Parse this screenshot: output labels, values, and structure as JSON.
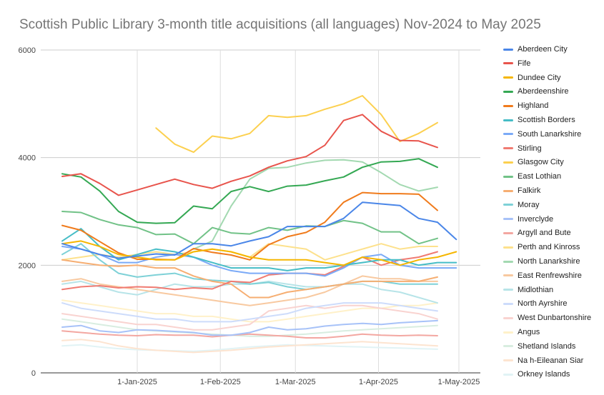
{
  "chart_data": {
    "type": "line",
    "title": "Scottish Public Library 3-month title acquisitions (all languages) Nov-2024 to May 2025",
    "xlabel": "",
    "ylabel": "",
    "ylim": [
      0,
      6000
    ],
    "yticks": [
      0,
      2000,
      4000,
      6000
    ],
    "xticks": [
      "1-Jan-2025",
      "1-Feb-2025",
      "1-Mar-2025",
      "1-Apr-2025",
      "1-May-2025"
    ],
    "grid": true,
    "legend": "right",
    "x": [
      "2024-12-04",
      "2024-12-11",
      "2024-12-18",
      "2024-12-25",
      "2025-01-01",
      "2025-01-08",
      "2025-01-15",
      "2025-01-22",
      "2025-01-29",
      "2025-02-05",
      "2025-02-12",
      "2025-02-19",
      "2025-02-26",
      "2025-03-05",
      "2025-03-12",
      "2025-03-19",
      "2025-03-26",
      "2025-04-02",
      "2025-04-09",
      "2025-04-16",
      "2025-04-23",
      "2025-04-30",
      "2025-05-07"
    ],
    "series": [
      {
        "name": "Aberdeen City",
        "color": "#4a86e8",
        "values": [
          2400,
          2300,
          2200,
          2130,
          2170,
          2210,
          2190,
          2400,
          2400,
          2360,
          2450,
          2530,
          2720,
          2720,
          2720,
          2870,
          3170,
          3140,
          3110,
          2870,
          2800,
          2480,
          null
        ]
      },
      {
        "name": "Fife",
        "color": "#e8544c",
        "values": [
          3650,
          3700,
          3520,
          3300,
          3400,
          3500,
          3600,
          3500,
          3430,
          3560,
          3660,
          3820,
          3940,
          4020,
          4230,
          4690,
          4800,
          4490,
          4320,
          4310,
          4190,
          null,
          null
        ]
      },
      {
        "name": "Dundee City",
        "color": "#f5b600",
        "values": [
          2400,
          2450,
          2350,
          2200,
          2150,
          2100,
          2100,
          2250,
          2300,
          2250,
          2150,
          2100,
          2100,
          2100,
          2050,
          2000,
          2150,
          2100,
          2000,
          2100,
          2150,
          2250,
          null
        ]
      },
      {
        "name": "Aberdeenshire",
        "color": "#34a853",
        "values": [
          3700,
          3640,
          3380,
          3000,
          2800,
          2780,
          2790,
          3100,
          3050,
          3370,
          3460,
          3370,
          3470,
          3490,
          3570,
          3640,
          3820,
          3920,
          3930,
          3980,
          3820,
          null,
          null
        ]
      },
      {
        "name": "Highland",
        "color": "#f07b1c",
        "values": [
          2740,
          2650,
          2440,
          2230,
          2110,
          2110,
          2100,
          2310,
          2240,
          2190,
          2100,
          2380,
          2530,
          2610,
          2800,
          3170,
          3350,
          3330,
          3330,
          3320,
          3020,
          null,
          null
        ]
      },
      {
        "name": "Scottish Borders",
        "color": "#46bdc6",
        "values": [
          2450,
          2680,
          2350,
          2100,
          2200,
          2300,
          2250,
          2150,
          2050,
          1950,
          1950,
          1950,
          1900,
          1950,
          1950,
          2000,
          2050,
          2100,
          2100,
          2000,
          2050,
          2050,
          null
        ]
      },
      {
        "name": "South Lanarkshire",
        "color": "#7baaf7",
        "values": [
          2350,
          2300,
          2200,
          2050,
          2050,
          2150,
          2200,
          2150,
          2000,
          1900,
          1850,
          1850,
          1850,
          1850,
          1800,
          1950,
          2150,
          2200,
          2000,
          1950,
          1950,
          1950,
          null
        ]
      },
      {
        "name": "Stirling",
        "color": "#f07b72",
        "values": [
          1550,
          1600,
          1620,
          1580,
          1600,
          1590,
          1550,
          1580,
          1560,
          1700,
          1680,
          1820,
          1850,
          1850,
          1820,
          1980,
          2150,
          2000,
          2100,
          2150,
          2250,
          null,
          null
        ]
      },
      {
        "name": "Glasgow City",
        "color": "#fcd04f",
        "values": [
          null,
          null,
          null,
          null,
          null,
          4550,
          4250,
          4100,
          4400,
          4350,
          4450,
          4780,
          4750,
          4780,
          4900,
          5000,
          5150,
          4800,
          4300,
          4450,
          4650,
          null,
          null
        ]
      },
      {
        "name": "East Lothian",
        "color": "#71c287",
        "values": [
          3000,
          2980,
          2850,
          2750,
          2700,
          2570,
          2580,
          2400,
          2700,
          2600,
          2580,
          2700,
          2650,
          2730,
          2720,
          2830,
          2780,
          2620,
          2620,
          2400,
          2500,
          null,
          null
        ]
      },
      {
        "name": "Falkirk",
        "color": "#f6ae72",
        "values": [
          2100,
          2050,
          2000,
          1980,
          2000,
          1950,
          1950,
          1800,
          1700,
          1650,
          1400,
          1400,
          1500,
          1550,
          1600,
          1650,
          1700,
          1700,
          1700,
          1700,
          1780,
          null,
          null
        ]
      },
      {
        "name": "Moray",
        "color": "#7ed1d7",
        "values": [
          2200,
          2400,
          2100,
          1850,
          1780,
          1820,
          1850,
          1750,
          1720,
          1700,
          1650,
          1680,
          1600,
          1550,
          1600,
          1650,
          1700,
          1700,
          1650,
          1650,
          1650,
          null,
          null
        ]
      },
      {
        "name": "Inverclyde",
        "color": "#a7c2f8",
        "values": [
          850,
          880,
          780,
          750,
          800,
          790,
          770,
          750,
          700,
          700,
          750,
          850,
          800,
          820,
          870,
          900,
          920,
          900,
          930,
          950,
          970,
          null,
          null
        ]
      },
      {
        "name": "Argyll and Bute",
        "color": "#f3a7a1",
        "values": [
          780,
          750,
          720,
          700,
          690,
          710,
          700,
          700,
          670,
          700,
          720,
          700,
          680,
          650,
          650,
          680,
          720,
          700,
          690,
          700,
          690,
          null,
          null
        ]
      },
      {
        "name": "Perth and Kinross",
        "color": "#fde18c",
        "values": [
          2100,
          2150,
          2200,
          2150,
          2200,
          2250,
          2200,
          2250,
          2300,
          2250,
          2150,
          2400,
          2350,
          2300,
          2100,
          2200,
          2300,
          2400,
          2300,
          2350,
          2350,
          null,
          null
        ]
      },
      {
        "name": "North Lanarkshire",
        "color": "#a3d9b1",
        "values": [
          null,
          null,
          null,
          null,
          null,
          null,
          null,
          2300,
          2450,
          3100,
          3600,
          3800,
          3820,
          3900,
          3950,
          3960,
          3920,
          3720,
          3500,
          3380,
          3450,
          null,
          null
        ]
      },
      {
        "name": "East Renfrewshire",
        "color": "#f8c9a0",
        "values": [
          1700,
          1750,
          1650,
          1600,
          1550,
          1500,
          1450,
          1400,
          1350,
          1300,
          1250,
          1300,
          1350,
          1400,
          1500,
          1650,
          1800,
          1750,
          1750,
          1700,
          1700,
          null,
          null
        ]
      },
      {
        "name": "Midlothian",
        "color": "#b7e4e8",
        "values": [
          1650,
          1700,
          1600,
          1500,
          1450,
          1550,
          1650,
          1600,
          1600,
          1650,
          1650,
          1700,
          1650,
          1600,
          1600,
          1650,
          1650,
          1550,
          1500,
          1400,
          1300,
          null,
          null
        ]
      },
      {
        "name": "North Ayrshire",
        "color": "#cddcfb",
        "values": [
          1300,
          1200,
          1150,
          1100,
          1050,
          1000,
          1000,
          950,
          950,
          950,
          1000,
          1050,
          1100,
          1200,
          1250,
          1300,
          1300,
          1300,
          1250,
          1200,
          1150,
          null,
          null
        ]
      },
      {
        "name": "West Dunbartonshire",
        "color": "#f9d3d0",
        "values": [
          1100,
          1050,
          1000,
          950,
          900,
          900,
          850,
          800,
          800,
          850,
          900,
          1150,
          1200,
          1250,
          1200,
          1250,
          1250,
          1200,
          1150,
          1100,
          1000,
          null,
          null
        ]
      },
      {
        "name": "Angus",
        "color": "#fff1c9",
        "values": [
          1350,
          1300,
          1250,
          1200,
          1150,
          1100,
          1100,
          1050,
          1050,
          1000,
          950,
          950,
          1000,
          1050,
          1100,
          1150,
          1200,
          1200,
          1250,
          1250,
          1300,
          null,
          null
        ]
      },
      {
        "name": "Shetland Islands",
        "color": "#d8ede0",
        "values": [
          1000,
          950,
          900,
          850,
          800,
          780,
          760,
          740,
          720,
          700,
          680,
          680,
          700,
          720,
          750,
          780,
          800,
          820,
          840,
          860,
          880,
          null,
          null
        ]
      },
      {
        "name": "Na h-Eileanan Siar",
        "color": "#fde4d0",
        "values": [
          600,
          620,
          580,
          500,
          450,
          420,
          400,
          380,
          400,
          420,
          450,
          480,
          500,
          520,
          540,
          560,
          580,
          560,
          540,
          520,
          500,
          null,
          null
        ]
      },
      {
        "name": "Orkney Islands",
        "color": "#e1f3f5",
        "values": [
          500,
          520,
          480,
          450,
          430,
          420,
          410,
          400,
          420,
          450,
          480,
          500,
          520,
          510,
          500,
          490,
          480,
          470,
          460,
          450,
          440,
          null,
          null
        ]
      }
    ]
  }
}
